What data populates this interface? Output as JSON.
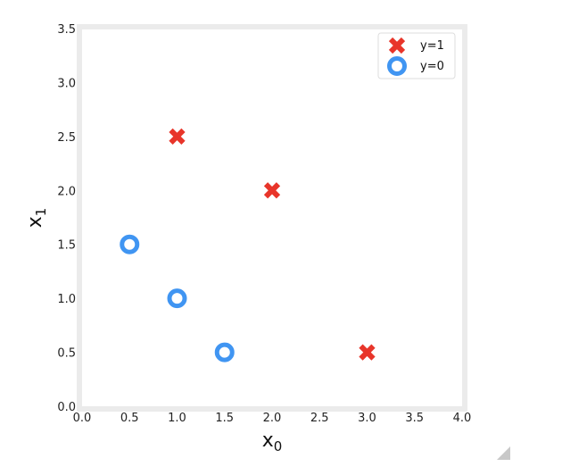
{
  "chart_data": {
    "type": "scatter",
    "title": "",
    "xlabel_main": "x",
    "xlabel_sub": "0",
    "ylabel_main": "x",
    "ylabel_sub": "1",
    "xlim": [
      0.0,
      4.0
    ],
    "ylim": [
      0.0,
      3.5
    ],
    "x_ticks": [
      "0.0",
      "0.5",
      "1.0",
      "1.5",
      "2.0",
      "2.5",
      "3.0",
      "3.5",
      "4.0"
    ],
    "y_ticks": [
      "0.0",
      "0.5",
      "1.0",
      "1.5",
      "2.0",
      "2.5",
      "3.0",
      "3.5"
    ],
    "grid": false,
    "legend_position": "top-right",
    "series": [
      {
        "name": "y=1",
        "marker": "x",
        "color": "#e8352a",
        "points": [
          {
            "x": 1.0,
            "y": 2.5
          },
          {
            "x": 2.0,
            "y": 2.0
          },
          {
            "x": 3.0,
            "y": 0.5
          }
        ]
      },
      {
        "name": "y=0",
        "marker": "o",
        "color": "#4095f2",
        "points": [
          {
            "x": 0.5,
            "y": 1.5
          },
          {
            "x": 1.0,
            "y": 1.0
          },
          {
            "x": 1.5,
            "y": 0.5
          }
        ]
      }
    ]
  }
}
